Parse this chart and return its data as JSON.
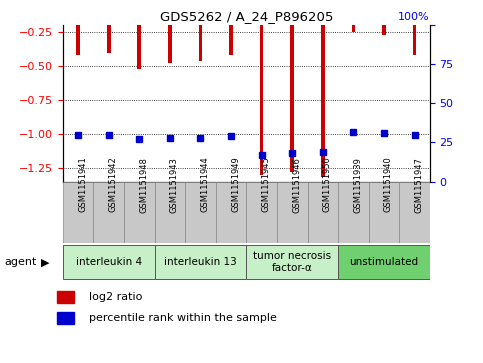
{
  "title": "GDS5262 / A_24_P896205",
  "samples": [
    "GSM1151941",
    "GSM1151942",
    "GSM1151948",
    "GSM1151943",
    "GSM1151944",
    "GSM1151949",
    "GSM1151945",
    "GSM1151946",
    "GSM1151950",
    "GSM1151939",
    "GSM1151940",
    "GSM1151947"
  ],
  "log2_ratio": [
    -0.42,
    -0.4,
    -0.52,
    -0.48,
    -0.46,
    -0.42,
    -1.3,
    -1.28,
    -1.32,
    -0.25,
    -0.27,
    -0.42
  ],
  "percentile": [
    30,
    30,
    27,
    28,
    28,
    29,
    17,
    18,
    19,
    32,
    31,
    30
  ],
  "groups": [
    {
      "label": "interleukin 4",
      "indices": [
        0,
        1,
        2
      ],
      "color": "#c8f0c8"
    },
    {
      "label": "interleukin 13",
      "indices": [
        3,
        4,
        5
      ],
      "color": "#c8f0c8"
    },
    {
      "label": "tumor necrosis\nfactor-α",
      "indices": [
        6,
        7,
        8
      ],
      "color": "#c8f0c8"
    },
    {
      "label": "unstimulated",
      "indices": [
        9,
        10,
        11
      ],
      "color": "#70d070"
    }
  ],
  "bar_color": "#cc0000",
  "percentile_color": "#0000cc",
  "ylim_left": [
    -1.35,
    -0.2
  ],
  "ylim_right": [
    0,
    100
  ],
  "yticks_left": [
    -1.25,
    -1.0,
    -0.75,
    -0.5,
    -0.25
  ],
  "yticks_right": [
    0,
    25,
    50,
    75,
    100
  ],
  "agent_label": "agent",
  "legend_items": [
    {
      "label": "log2 ratio",
      "color": "#cc0000"
    },
    {
      "label": "percentile rank within the sample",
      "color": "#0000cc"
    }
  ],
  "background_color": "#ffffff",
  "plot_bg_color": "#ffffff",
  "bar_width": 0.12,
  "sample_box_color": "#c8c8c8"
}
